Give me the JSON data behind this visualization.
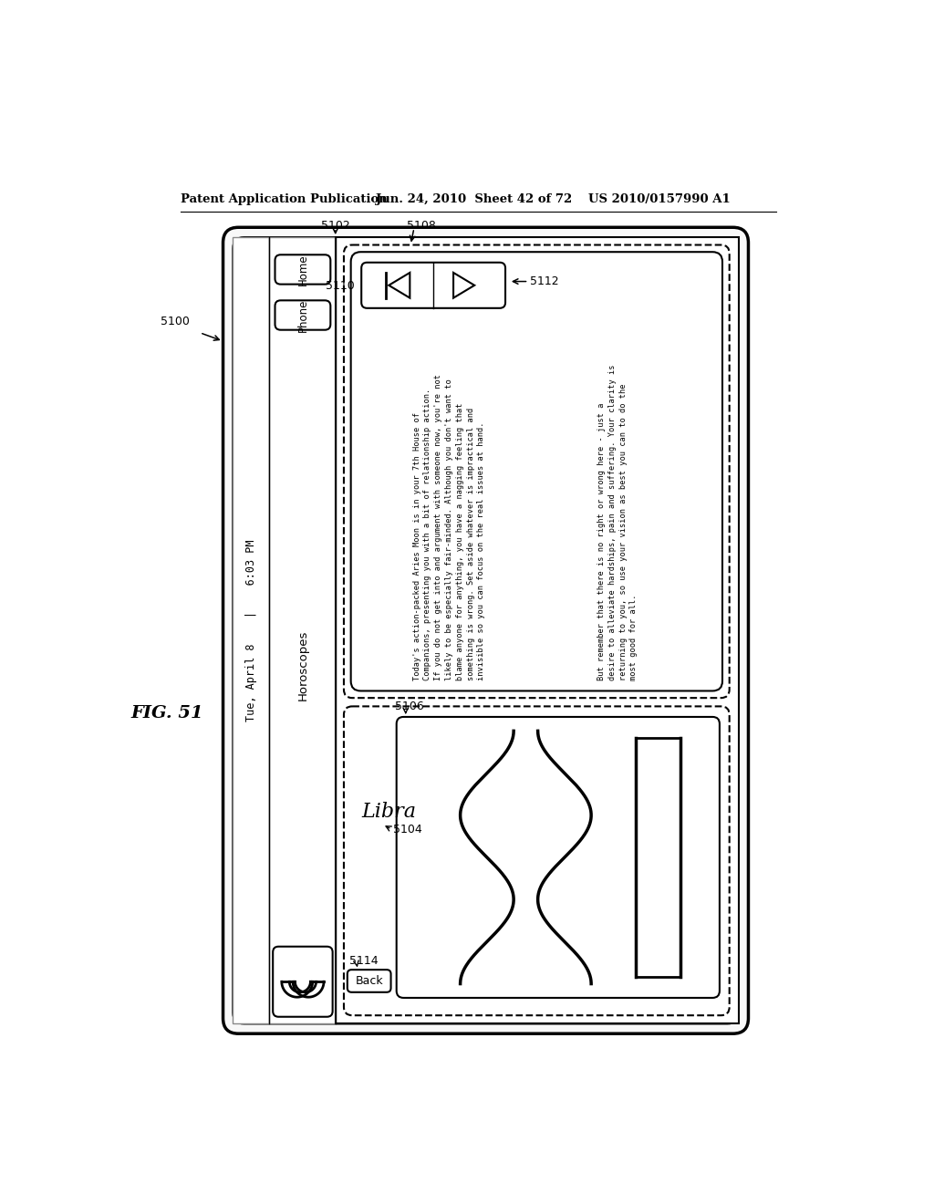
{
  "bg": "#ffffff",
  "header_left": "Patent Application Publication",
  "header_mid": "Jun. 24, 2010  Sheet 42 of 72",
  "header_right": "US 2010/0157990 A1",
  "fig_label": "FIG. 51",
  "label_5100": "5100",
  "label_5102": "5102",
  "label_5104": "5104",
  "label_5106": "5106",
  "label_5108": "5108",
  "label_5110": "5110",
  "label_5112": "5112",
  "label_5114": "5114",
  "status_text": "Tue, April 8    |    6:03 PM",
  "home_btn": "Home",
  "phone_btn": "Phone",
  "back_btn": "Back",
  "category": "Horoscopes",
  "sign": "Libra",
  "para1_line1": "Today's action-packed Aries Moon is in your 7th House of",
  "para1_line2": "Companions, presenting you with a bit of relationship action.",
  "para1_line3": "If you do not get into and argument with someone now, you're not",
  "para1_line4": "likely to be especially fair-minded. Although you don't want to",
  "para1_line5": "blame anyone for anything, you have a nagging feeling that",
  "para1_line6": "something is wrong. Set aside whatever is impractical and",
  "para1_line7": "invisible so you can focus on the real issues at hand.",
  "para2_line1": "But remember that there is no right or wrong here - just a",
  "para2_line2": "desire to alleviate hardships, pain and suffering. Your clarity is",
  "para2_line3": "returning to you, so use your vision as best you can to do the",
  "para2_line4": "most good for all."
}
